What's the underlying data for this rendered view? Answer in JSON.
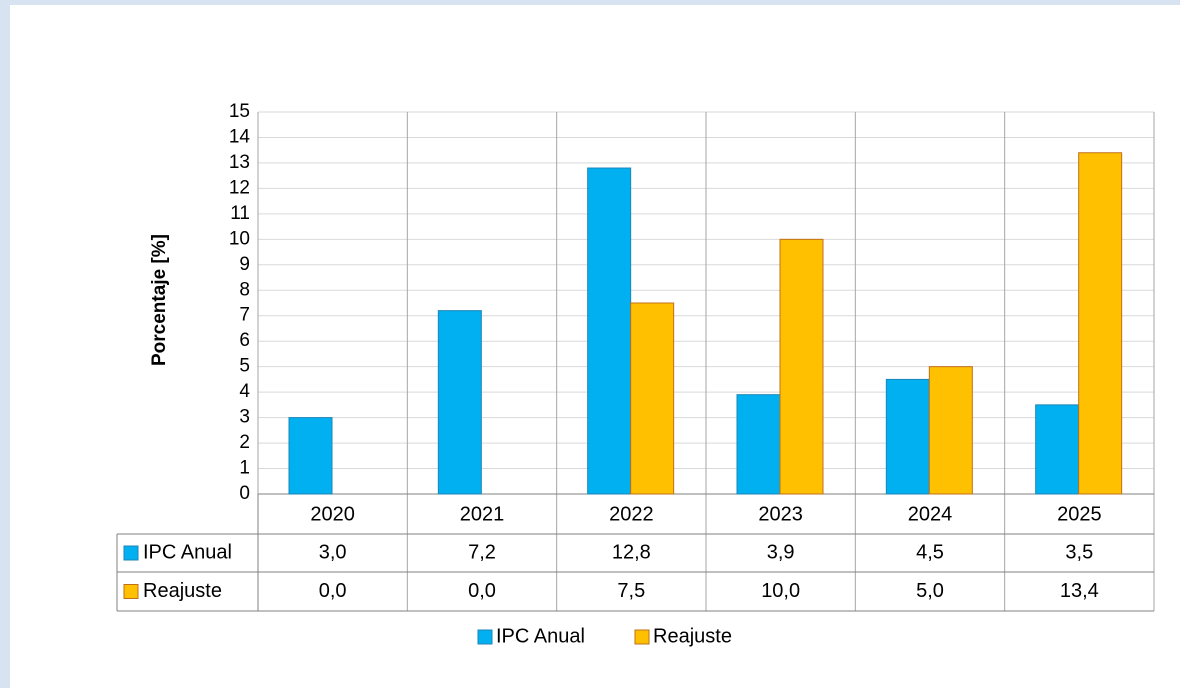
{
  "chart_data": {
    "type": "bar",
    "y_label": "Porcentaje [%]",
    "categories": [
      "2020",
      "2021",
      "2022",
      "2023",
      "2024",
      "2025"
    ],
    "series": [
      {
        "name": "IPC Anual",
        "color": "#00b0f0",
        "values": [
          3.0,
          7.2,
          12.8,
          3.9,
          4.5,
          3.5
        ],
        "value_labels": [
          "3,0",
          "7,2",
          "12,8",
          "3,9",
          "4,5",
          "3,5"
        ]
      },
      {
        "name": "Reajuste",
        "color": "#ffc000",
        "values": [
          0.0,
          0.0,
          7.5,
          10.0,
          5.0,
          13.4
        ],
        "value_labels": [
          "0,0",
          "0,0",
          "7,5",
          "10,0",
          "5,0",
          "13,4"
        ]
      }
    ],
    "ylim": [
      0,
      15
    ],
    "yticks": [
      0,
      1,
      2,
      3,
      4,
      5,
      6,
      7,
      8,
      9,
      10,
      11,
      12,
      13,
      14,
      15
    ],
    "grid": true,
    "legend": "bottom"
  }
}
